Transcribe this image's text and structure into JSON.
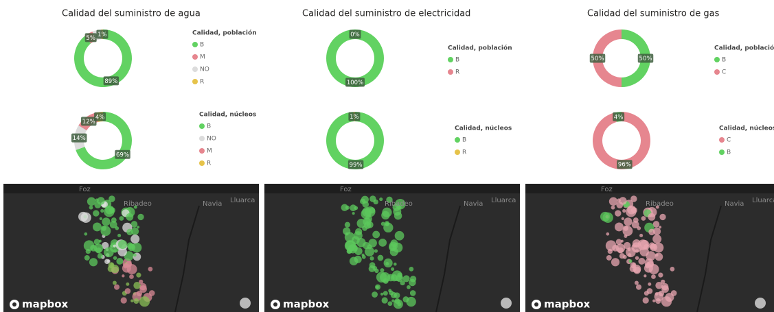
{
  "chart_data": [
    {
      "type": "donut",
      "title": "Calidad del suministro de agua",
      "legend_title": "Calidad, población",
      "categories": [
        "B",
        "M",
        "NO",
        "R"
      ],
      "values": [
        89,
        5,
        5,
        1
      ],
      "value_labels": [
        "89%",
        "5%",
        null,
        "1%"
      ],
      "colors": [
        "#62d262",
        "#e6868f",
        "#dcdcdc",
        "#e6c34a"
      ]
    },
    {
      "type": "donut",
      "legend_title": "Calidad, núcleos",
      "categories": [
        "B",
        "NO",
        "M",
        "R"
      ],
      "values": [
        69,
        14,
        12,
        4
      ],
      "value_labels": [
        "69%",
        "14%",
        "12%",
        "4%"
      ],
      "colors": [
        "#62d262",
        "#dcdcdc",
        "#e6868f",
        "#e6c34a"
      ]
    },
    {
      "type": "donut",
      "title": "Calidad del suministro de electricidad",
      "legend_title": "Calidad, población",
      "categories": [
        "B",
        "R"
      ],
      "values": [
        100,
        0
      ],
      "value_labels": [
        "100%",
        "0%"
      ],
      "colors": [
        "#62d262",
        "#e6868f"
      ]
    },
    {
      "type": "donut",
      "legend_title": "Calidad, núcleos",
      "categories": [
        "B",
        "R"
      ],
      "values": [
        99,
        1
      ],
      "value_labels": [
        "99%",
        "1%"
      ],
      "colors": [
        "#62d262",
        "#e6c34a"
      ]
    },
    {
      "type": "donut",
      "title": "Calidad del suministro de gas",
      "legend_title": "Calidad, población",
      "categories": [
        "B",
        "C"
      ],
      "values": [
        50,
        50
      ],
      "value_labels": [
        "50%",
        "50%"
      ],
      "colors": [
        "#62d262",
        "#e6868f"
      ]
    },
    {
      "type": "donut",
      "legend_title": "Calidad, núcleos",
      "categories": [
        "C",
        "B"
      ],
      "values": [
        96,
        4
      ],
      "value_labels": [
        "96%",
        "4%"
      ],
      "colors": [
        "#e6868f",
        "#62d262"
      ]
    }
  ],
  "maps": [
    {
      "labels": [
        "Foz",
        "Ribadeo",
        "Navia",
        "Lluarca"
      ],
      "brand": "mapbox",
      "dots": "mixed"
    },
    {
      "labels": [
        "Foz",
        "Ribadeo",
        "Navia",
        "Lluarca"
      ],
      "brand": "mapbox",
      "dots": "green"
    },
    {
      "labels": [
        "Foz",
        "Ribadeo",
        "Navia",
        "Lluarca"
      ],
      "brand": "mapbox",
      "dots": "pink"
    }
  ]
}
